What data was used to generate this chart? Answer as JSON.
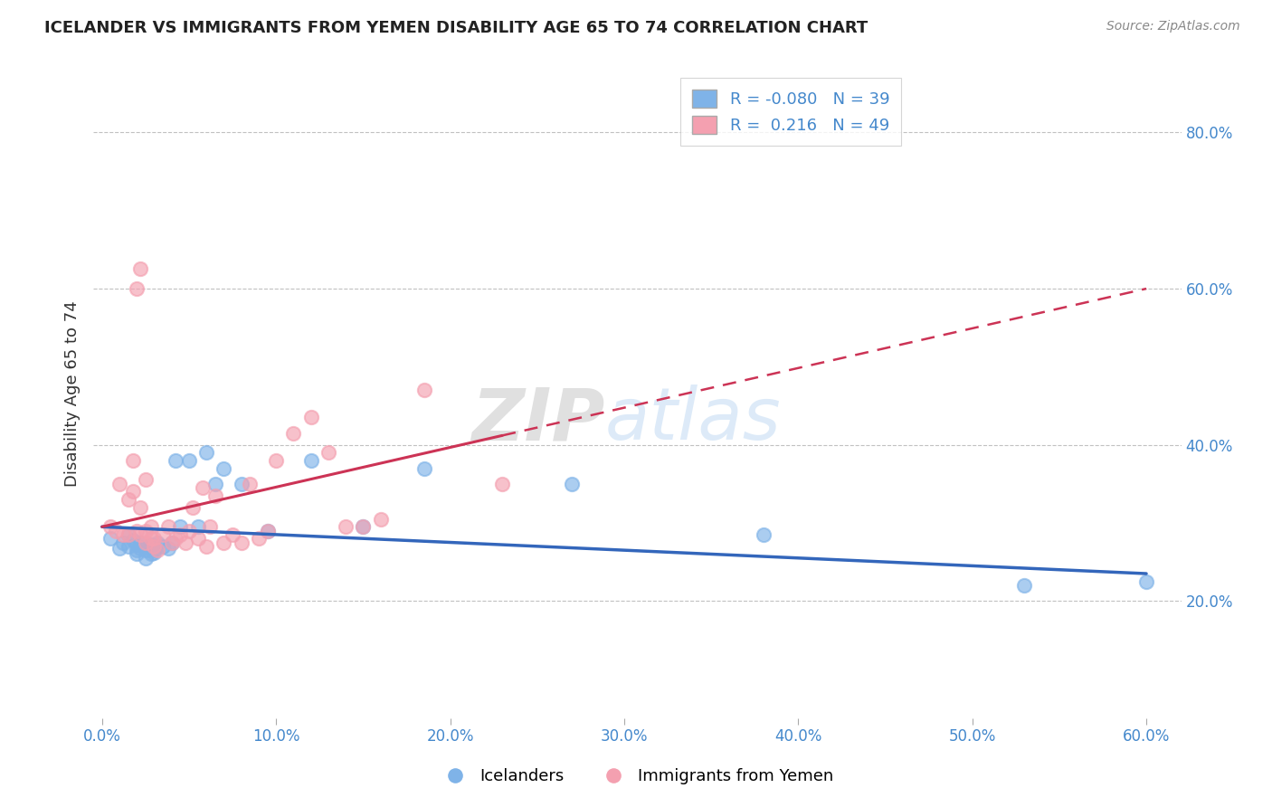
{
  "title": "ICELANDER VS IMMIGRANTS FROM YEMEN DISABILITY AGE 65 TO 74 CORRELATION CHART",
  "source": "Source: ZipAtlas.com",
  "ylabel": "Disability Age 65 to 74",
  "xlim": [
    -0.005,
    0.62
  ],
  "ylim": [
    0.05,
    0.88
  ],
  "xticks": [
    0.0,
    0.1,
    0.2,
    0.3,
    0.4,
    0.5,
    0.6
  ],
  "yticks": [
    0.2,
    0.4,
    0.6,
    0.8
  ],
  "ytick_labels": [
    "20.0%",
    "40.0%",
    "60.0%",
    "80.0%"
  ],
  "xtick_labels": [
    "0.0%",
    "10.0%",
    "20.0%",
    "30.0%",
    "40.0%",
    "50.0%",
    "60.0%"
  ],
  "blue_color": "#7FB3E8",
  "pink_color": "#F4A0B0",
  "blue_line_color": "#3366BB",
  "pink_line_color": "#CC3355",
  "R_blue": -0.08,
  "N_blue": 39,
  "R_pink": 0.216,
  "N_pink": 49,
  "watermark_zip": "ZIP",
  "watermark_atlas": "atlas",
  "blue_scatter_x": [
    0.005,
    0.01,
    0.012,
    0.015,
    0.015,
    0.018,
    0.02,
    0.02,
    0.02,
    0.022,
    0.022,
    0.025,
    0.025,
    0.025,
    0.028,
    0.028,
    0.03,
    0.03,
    0.03,
    0.032,
    0.035,
    0.038,
    0.04,
    0.042,
    0.045,
    0.05,
    0.055,
    0.06,
    0.065,
    0.07,
    0.08,
    0.095,
    0.12,
    0.15,
    0.185,
    0.27,
    0.38,
    0.53,
    0.6
  ],
  "blue_scatter_y": [
    0.28,
    0.268,
    0.275,
    0.27,
    0.285,
    0.278,
    0.26,
    0.272,
    0.265,
    0.275,
    0.268,
    0.255,
    0.265,
    0.27,
    0.26,
    0.272,
    0.262,
    0.27,
    0.265,
    0.275,
    0.27,
    0.268,
    0.275,
    0.38,
    0.295,
    0.38,
    0.295,
    0.39,
    0.35,
    0.37,
    0.35,
    0.29,
    0.38,
    0.295,
    0.37,
    0.35,
    0.285,
    0.22,
    0.225
  ],
  "pink_scatter_x": [
    0.005,
    0.008,
    0.01,
    0.012,
    0.015,
    0.015,
    0.018,
    0.018,
    0.02,
    0.02,
    0.022,
    0.022,
    0.022,
    0.025,
    0.025,
    0.025,
    0.028,
    0.028,
    0.03,
    0.03,
    0.032,
    0.035,
    0.038,
    0.04,
    0.042,
    0.045,
    0.048,
    0.05,
    0.052,
    0.055,
    0.058,
    0.06,
    0.062,
    0.065,
    0.07,
    0.075,
    0.08,
    0.085,
    0.09,
    0.095,
    0.1,
    0.11,
    0.12,
    0.13,
    0.14,
    0.15,
    0.16,
    0.185,
    0.23
  ],
  "pink_scatter_y": [
    0.295,
    0.29,
    0.35,
    0.285,
    0.33,
    0.285,
    0.38,
    0.34,
    0.29,
    0.6,
    0.32,
    0.285,
    0.625,
    0.275,
    0.355,
    0.29,
    0.28,
    0.295,
    0.27,
    0.28,
    0.265,
    0.285,
    0.295,
    0.275,
    0.28,
    0.285,
    0.275,
    0.29,
    0.32,
    0.28,
    0.345,
    0.27,
    0.295,
    0.335,
    0.275,
    0.285,
    0.275,
    0.35,
    0.28,
    0.29,
    0.38,
    0.415,
    0.435,
    0.39,
    0.295,
    0.295,
    0.305,
    0.47,
    0.35
  ]
}
